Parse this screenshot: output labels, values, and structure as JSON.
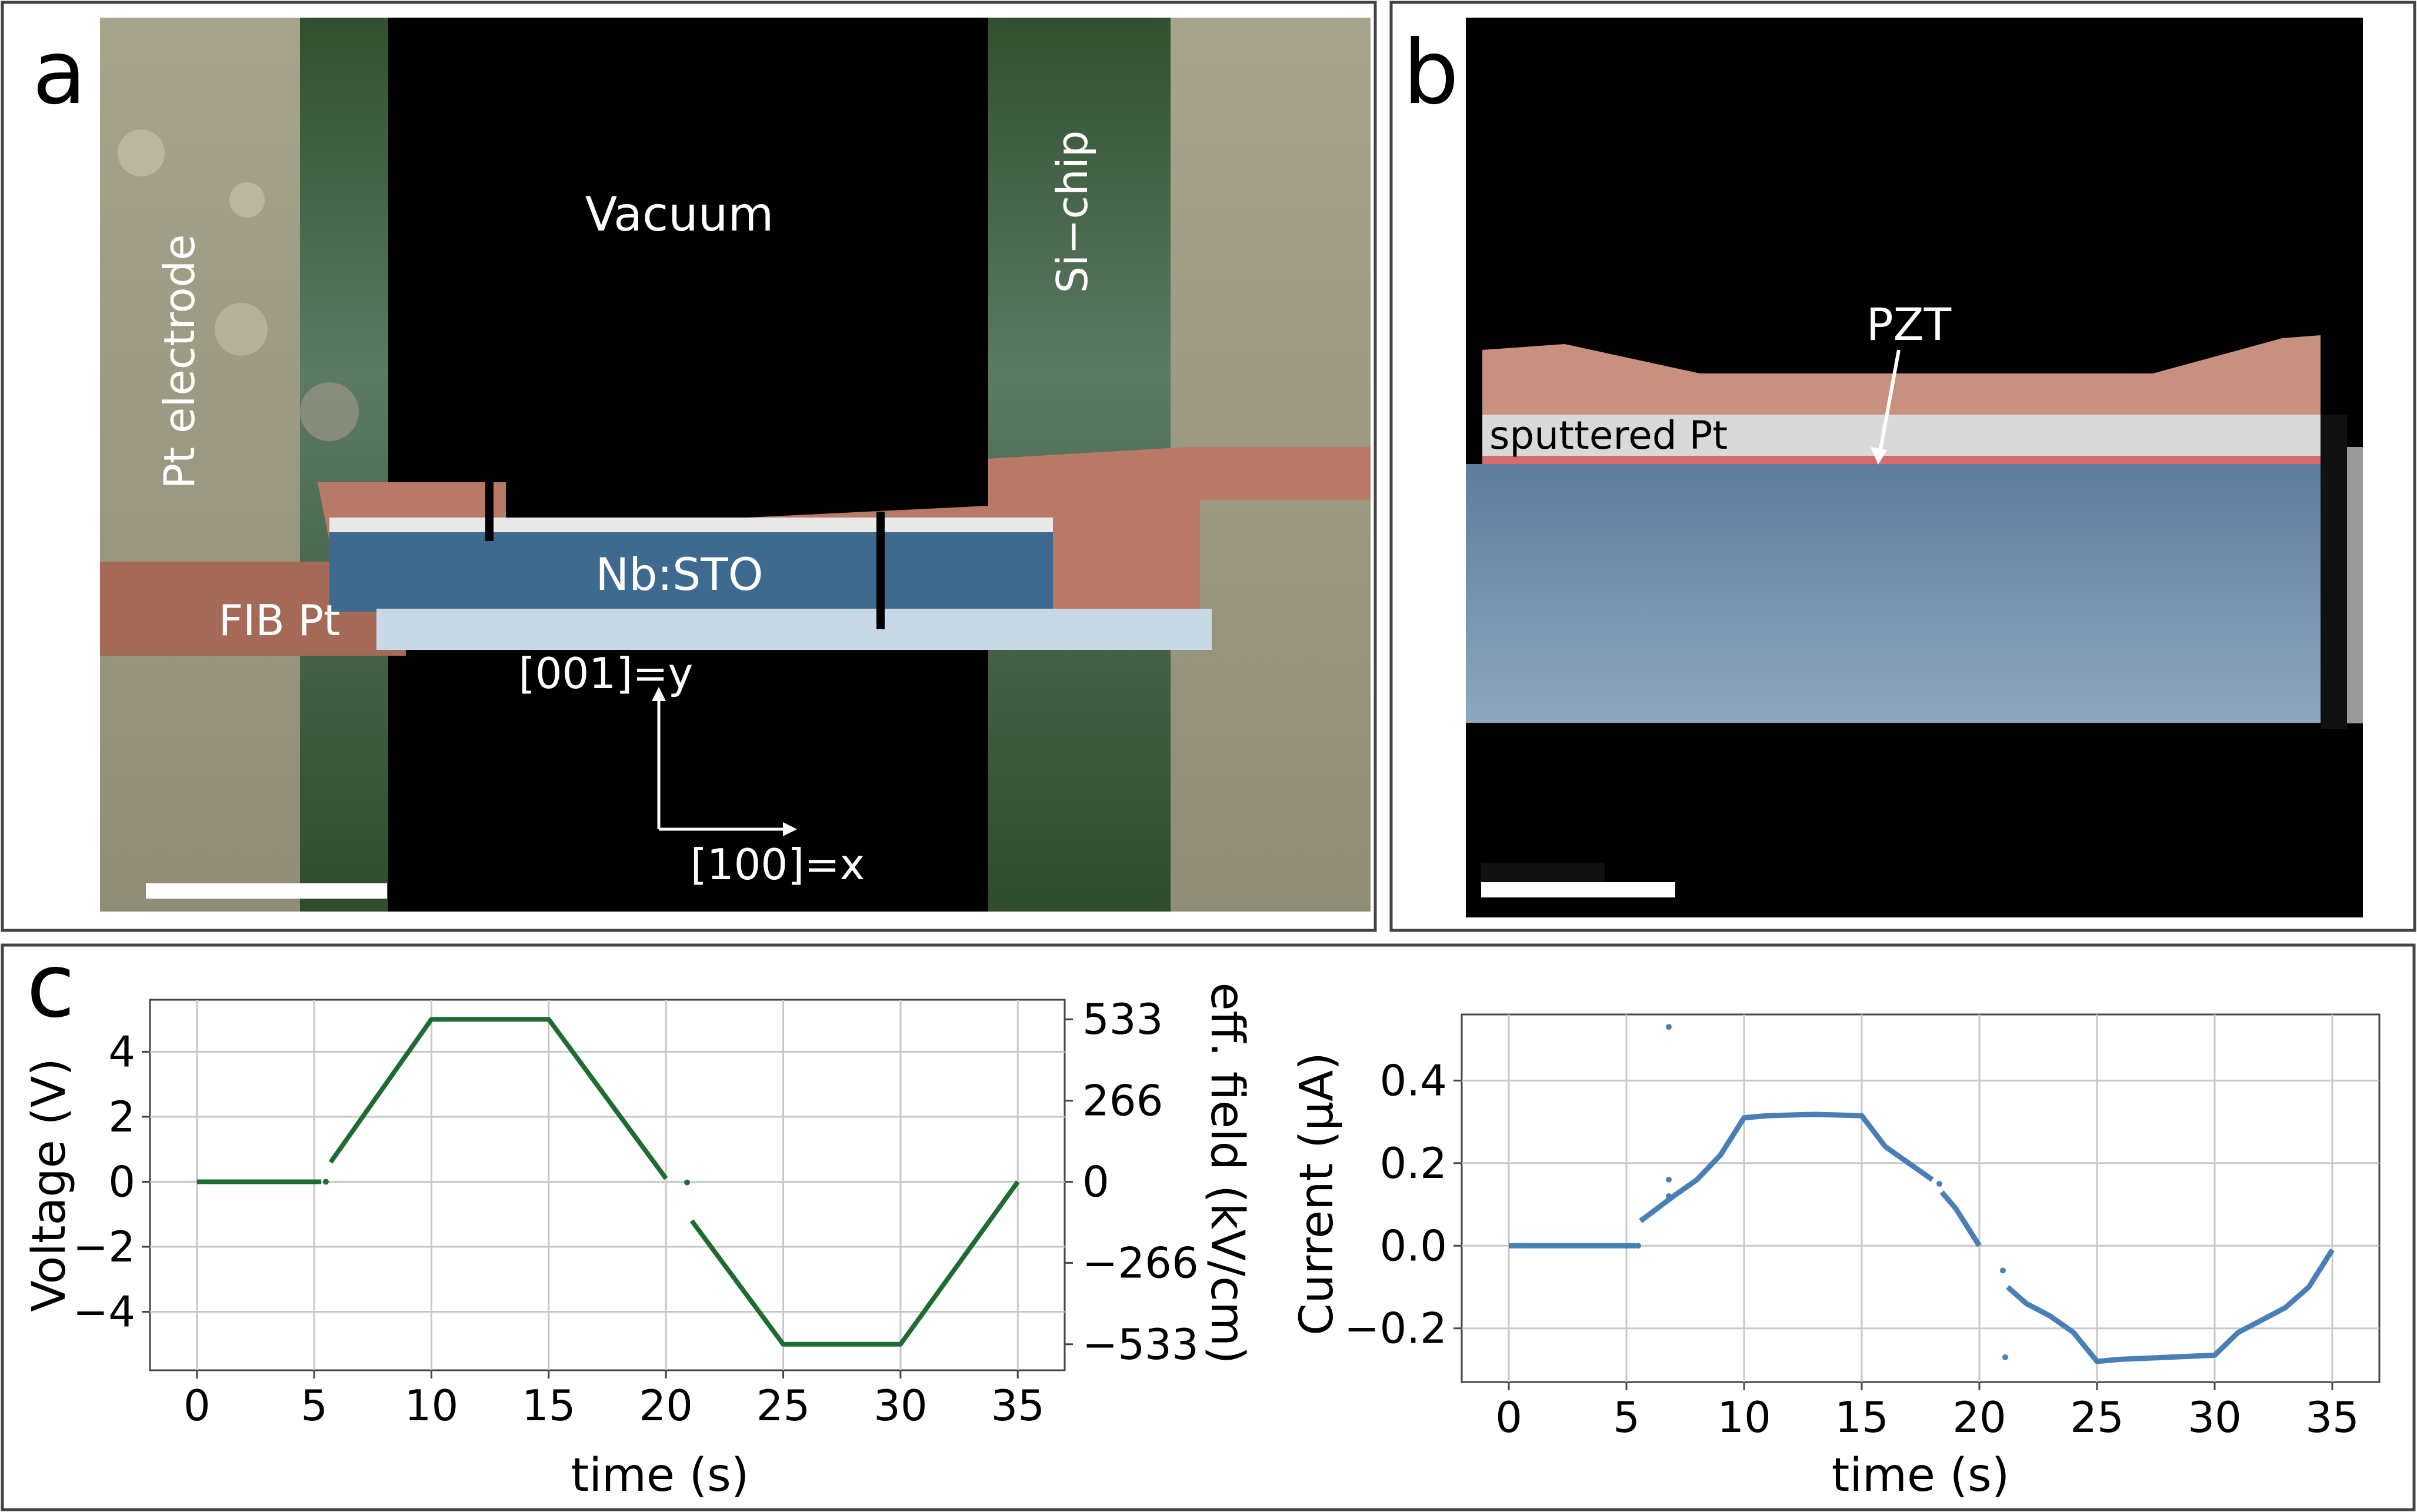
{
  "panel_a": {
    "letter": "a",
    "labels": {
      "pt_electrode": "Pt electrode",
      "vacuum": "Vacuum",
      "si_chip": "Si−chip",
      "nb_sto": "Nb:STO",
      "fib_pt": "FIB Pt",
      "axis_y": "[001]=y",
      "axis_x": "[100]=x"
    },
    "colors": {
      "pt_electrode": "#9c9a84",
      "si_chip": "#2f4a2e",
      "pt_layer": "#b87a66",
      "nb_sto": "#3f6a8f",
      "vacuum": "#000000"
    }
  },
  "panel_b": {
    "letter": "b",
    "labels": {
      "pzt": "PZT",
      "sputtered_pt": "sputtered Pt"
    },
    "colors": {
      "pzt_top": "#c8917f",
      "sputtered_pt": "#d9d9d9",
      "pzt_line": "#d66b6b",
      "substrate": "#7e97b3"
    }
  },
  "panel_c": {
    "letter": "c"
  },
  "chart_data": [
    {
      "type": "line",
      "title": "",
      "xlabel": "time (s)",
      "ylabel": "Voltage (V)",
      "ylabel_right": "eff. field (kV/cm)",
      "xlim": [
        -2,
        37
      ],
      "ylim": [
        -5.8,
        5.6
      ],
      "xticks": [
        0,
        5,
        10,
        15,
        20,
        25,
        30,
        35
      ],
      "yticks": [
        4,
        2,
        0,
        -2,
        -4
      ],
      "ytick_labels": [
        "4",
        "2",
        "0",
        "−2",
        "−4"
      ],
      "yticks_right": [
        533,
        266,
        0,
        -266,
        -533
      ],
      "ytick_labels_right": [
        "533",
        "266",
        "0",
        "−266",
        "−533"
      ],
      "xtick_labels": [
        "0",
        "5",
        "10",
        "15",
        "20",
        "25",
        "30",
        "35"
      ],
      "color": "#1e6b34",
      "series": [
        {
          "name": "voltage",
          "segments": [
            [
              [
                0,
                0
              ],
              [
                5.3,
                0
              ]
            ],
            [
              [
                5.7,
                0.6
              ],
              [
                10,
                5
              ],
              [
                15,
                5
              ],
              [
                20,
                0.1
              ]
            ],
            [
              [
                21.1,
                -1.2
              ],
              [
                25,
                -5
              ],
              [
                30,
                -5
              ],
              [
                35,
                0
              ]
            ]
          ],
          "points": [
            [
              5.5,
              0.0
            ],
            [
              20.9,
              -0.02
            ]
          ]
        }
      ]
    },
    {
      "type": "scatter",
      "title": "",
      "xlabel": "time (s)",
      "ylabel": "Current (μA)",
      "xlim": [
        -2,
        37
      ],
      "ylim": [
        -0.33,
        0.56
      ],
      "xticks": [
        0,
        5,
        10,
        15,
        20,
        25,
        30,
        35
      ],
      "xtick_labels": [
        "0",
        "5",
        "10",
        "15",
        "20",
        "25",
        "30",
        "35"
      ],
      "yticks": [
        0.4,
        0.2,
        0.0,
        -0.2
      ],
      "ytick_labels": [
        "0.4",
        "0.2",
        "0.0",
        "−0.2"
      ],
      "color": "#4a7fb5",
      "series": [
        {
          "name": "current",
          "segments": [
            [
              [
                0,
                0
              ],
              [
                5.4,
                0
              ]
            ],
            [
              [
                5.6,
                0.06
              ],
              [
                7,
                0.12
              ],
              [
                8,
                0.16
              ],
              [
                9,
                0.22
              ],
              [
                10,
                0.31
              ],
              [
                11,
                0.315
              ],
              [
                13,
                0.318
              ],
              [
                15,
                0.315
              ],
              [
                16,
                0.24
              ],
              [
                17,
                0.2
              ],
              [
                18,
                0.16
              ]
            ],
            [
              [
                18.4,
                0.13
              ],
              [
                19,
                0.09
              ],
              [
                20,
                0.0
              ]
            ],
            [
              [
                21.2,
                -0.1
              ],
              [
                22,
                -0.14
              ],
              [
                23,
                -0.17
              ],
              [
                24,
                -0.21
              ],
              [
                25,
                -0.28
              ],
              [
                26,
                -0.275
              ],
              [
                28,
                -0.27
              ],
              [
                30,
                -0.265
              ],
              [
                31,
                -0.21
              ],
              [
                32,
                -0.18
              ],
              [
                33,
                -0.15
              ],
              [
                34,
                -0.1
              ],
              [
                35,
                -0.01
              ]
            ]
          ],
          "points": [
            [
              6.8,
              0.53
            ],
            [
              6.8,
              0.16
            ],
            [
              6.8,
              0.12
            ],
            [
              21.0,
              -0.06
            ],
            [
              21.1,
              -0.27
            ],
            [
              18.3,
              0.15
            ],
            [
              5.5,
              0.0
            ]
          ]
        }
      ]
    }
  ]
}
